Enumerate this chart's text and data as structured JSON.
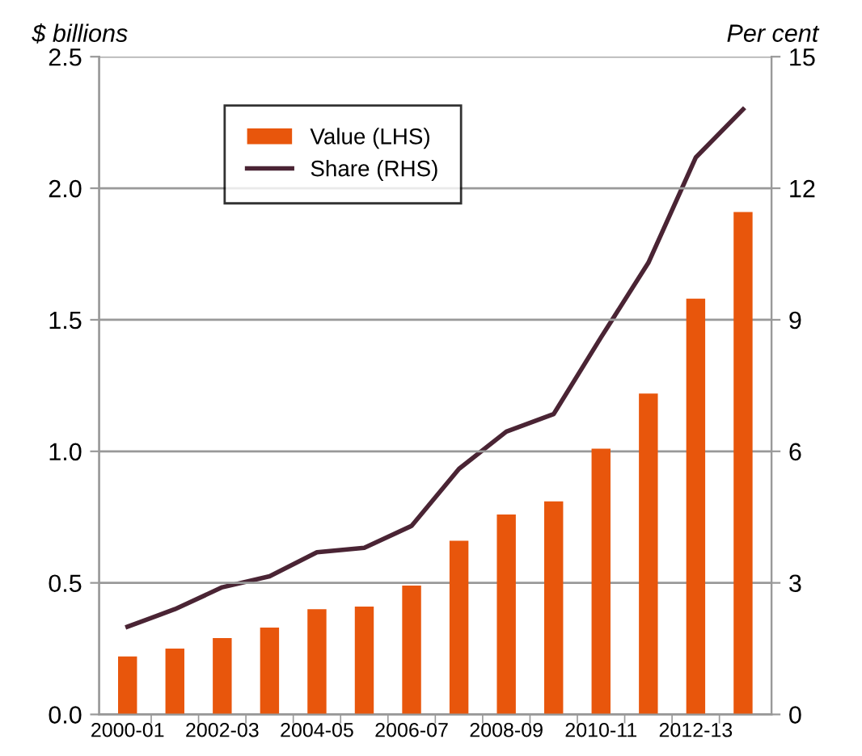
{
  "chart_data": {
    "type": "bar",
    "ylabel": "$ billions",
    "y2label": "Per cent",
    "categories": [
      "2000-01",
      null,
      "2002-03",
      null,
      "2004-05",
      null,
      "2006-07",
      null,
      "2008-09",
      null,
      "2010-11",
      null,
      "2012-13",
      null
    ],
    "series": [
      {
        "name": "Value (LHS)",
        "color": "#e8560c",
        "values": [
          0.22,
          0.25,
          0.29,
          0.33,
          0.4,
          0.41,
          0.49,
          0.66,
          0.76,
          0.81,
          1.01,
          1.22,
          1.58,
          1.91
        ]
      },
      {
        "name": "Share (RHS)",
        "type": "line",
        "axis": "y2",
        "color": "#4a2434",
        "values": [
          2.0,
          2.4,
          2.9,
          3.15,
          3.7,
          3.8,
          4.3,
          5.6,
          6.45,
          6.85,
          8.6,
          10.3,
          12.7,
          13.8
        ]
      }
    ],
    "ylim": [
      0,
      2.5
    ],
    "yticks": [
      {
        "value": 0,
        "label": "0.0"
      },
      0.5,
      {
        "value": 1,
        "label": "1.0"
      },
      1.5,
      {
        "value": 2,
        "label": "2.0"
      },
      2.5
    ],
    "y2lim": [
      0,
      15
    ],
    "y2ticks": [
      0,
      3,
      6,
      9,
      12,
      15
    ],
    "grid": "y",
    "legend": "top"
  }
}
